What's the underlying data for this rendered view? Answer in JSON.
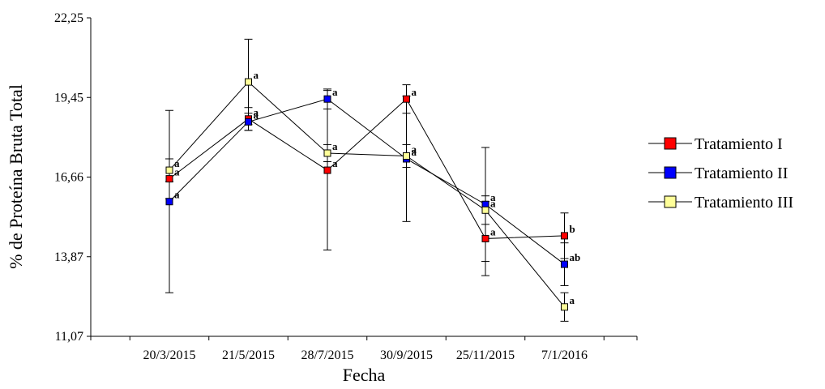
{
  "chart_data": {
    "type": "line",
    "xlabel": "Fecha",
    "ylabel": "% de Proteína Bruta Total",
    "ylim": [
      11.07,
      22.25
    ],
    "yticks": [
      "11,07",
      "13,87",
      "16,66",
      "19,45",
      "22,25"
    ],
    "categories": [
      "20/3/2015",
      "21/5/2015",
      "28/7/2015",
      "30/9/2015",
      "25/11/2015",
      "7/1/2016"
    ],
    "legend_position": "right",
    "series": [
      {
        "name": "Tratamiento I",
        "color": "#ff0000",
        "values": [
          16.6,
          18.7,
          16.9,
          19.4,
          14.5,
          14.6
        ],
        "error": [
          0.7,
          0.4,
          2.8,
          0.5,
          1.3,
          0.8
        ],
        "labels": [
          "a",
          "a",
          "a",
          "a",
          "a",
          "b"
        ]
      },
      {
        "name": "Tratamiento II",
        "color": "#0000ff",
        "values": [
          15.8,
          18.6,
          19.4,
          17.3,
          15.7,
          13.6
        ],
        "error": [
          3.2,
          0.3,
          0.35,
          2.2,
          2.0,
          0.75
        ],
        "labels": [
          "a",
          "a",
          "a",
          "a",
          "a",
          "ab"
        ]
      },
      {
        "name": "Tratamiento III",
        "color": "#ffff99",
        "values": [
          16.9,
          20.0,
          17.5,
          17.4,
          15.5,
          12.1
        ],
        "error": [
          0.4,
          1.5,
          0.3,
          0.4,
          0.5,
          0.5
        ],
        "labels": [
          "a",
          "a",
          "a",
          "a",
          "a",
          "a"
        ]
      }
    ]
  }
}
